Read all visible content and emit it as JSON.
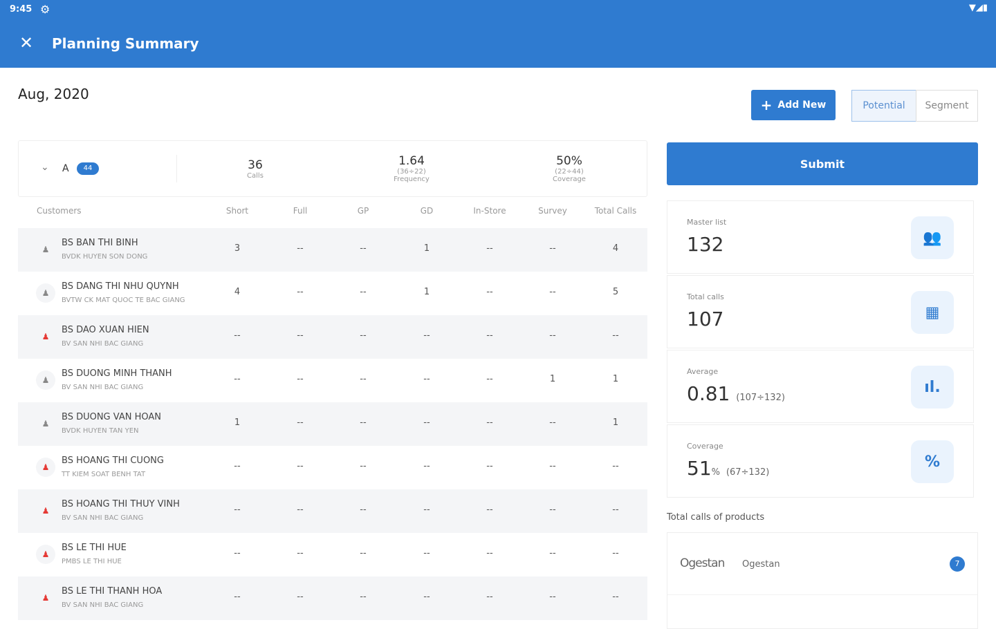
{
  "status": {
    "time": "9:45"
  },
  "appbar": {
    "title": "Planning Summary"
  },
  "month": "Aug, 2020",
  "actions": {
    "add_new": "Add New",
    "potential": "Potential",
    "segment": "Segment",
    "submit": "Submit"
  },
  "summary": {
    "group": "A",
    "badge": "44",
    "calls": "36",
    "calls_label": "Calls",
    "frequency": "1.64",
    "frequency_sub": "(36÷22)",
    "frequency_label": "Frequency",
    "coverage": "50%",
    "coverage_sub": "(22÷44)",
    "coverage_label": "Coverage"
  },
  "columns": [
    "Customers",
    "Short",
    "Full",
    "GP",
    "GD",
    "In-Store",
    "Survey",
    "Total Calls"
  ],
  "rows": [
    {
      "name": "BS BAN THI BINH",
      "org": "BVDK HUYEN SON DONG",
      "alert": false,
      "v": [
        "3",
        "--",
        "--",
        "1",
        "--",
        "--",
        "4"
      ]
    },
    {
      "name": "BS DANG THI NHU QUYNH",
      "org": "BVTW CK MAT QUOC TE BAC GIANG",
      "alert": false,
      "v": [
        "4",
        "--",
        "--",
        "1",
        "--",
        "--",
        "5"
      ]
    },
    {
      "name": "BS DAO XUAN HIEN",
      "org": "BV SAN NHI BAC GIANG",
      "alert": true,
      "v": [
        "--",
        "--",
        "--",
        "--",
        "--",
        "--",
        "--"
      ]
    },
    {
      "name": "BS DUONG MINH THANH",
      "org": "BV SAN NHI BAC GIANG",
      "alert": false,
      "v": [
        "--",
        "--",
        "--",
        "--",
        "--",
        "1",
        "1"
      ]
    },
    {
      "name": "BS DUONG VAN HOAN",
      "org": "BVDK HUYEN TAN YEN",
      "alert": false,
      "v": [
        "1",
        "--",
        "--",
        "--",
        "--",
        "--",
        "1"
      ]
    },
    {
      "name": "BS HOANG THI CUONG",
      "org": "TT KIEM SOAT BENH TAT",
      "alert": true,
      "v": [
        "--",
        "--",
        "--",
        "--",
        "--",
        "--",
        "--"
      ]
    },
    {
      "name": "BS HOANG THI THUY VINH",
      "org": "BV SAN NHI BAC GIANG",
      "alert": true,
      "v": [
        "--",
        "--",
        "--",
        "--",
        "--",
        "--",
        "--"
      ]
    },
    {
      "name": "BS LE THI HUE",
      "org": "PMBS LE THI HUE",
      "alert": true,
      "v": [
        "--",
        "--",
        "--",
        "--",
        "--",
        "--",
        "--"
      ]
    },
    {
      "name": "BS LE THI THANH HOA",
      "org": "BV SAN NHI BAC GIANG",
      "alert": true,
      "v": [
        "--",
        "--",
        "--",
        "--",
        "--",
        "--",
        "--"
      ]
    }
  ],
  "stats": [
    {
      "label": "Master list",
      "value": "132",
      "extra": "",
      "icon": "people-icon"
    },
    {
      "label": "Total calls",
      "value": "107",
      "extra": "",
      "icon": "calendar-icon"
    },
    {
      "label": "Average",
      "value": "0.81",
      "extra": "(107÷132)",
      "icon": "bar-chart-icon"
    },
    {
      "label": "Coverage",
      "value": "51",
      "unit": "%",
      "extra": "(67÷132)",
      "icon": "percent-icon"
    }
  ],
  "products": {
    "title": "Total calls of products",
    "items": [
      {
        "logo": "Ogestan",
        "name": "Ogestan",
        "count": "7"
      }
    ]
  },
  "colors": {
    "primary": "#2f7bd0",
    "alert": "#e53935"
  }
}
